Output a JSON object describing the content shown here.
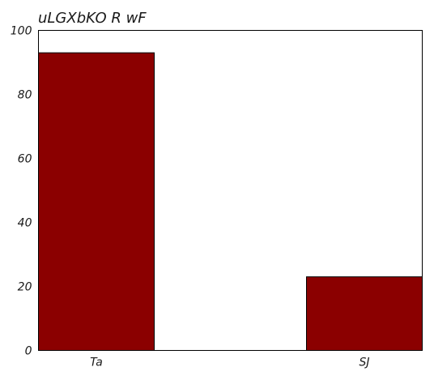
{
  "chart_data": {
    "type": "bar",
    "title": "uLGXbKO  R wF",
    "xlabel": "",
    "ylabel": "",
    "categories": [
      "Ta",
      "SJ"
    ],
    "values": [
      93,
      23
    ],
    "ylim": [
      0,
      100
    ],
    "yticks": [
      0,
      20,
      40,
      60,
      80,
      100
    ],
    "grid": false,
    "legend": "none",
    "bar_color": "#8b0000"
  }
}
